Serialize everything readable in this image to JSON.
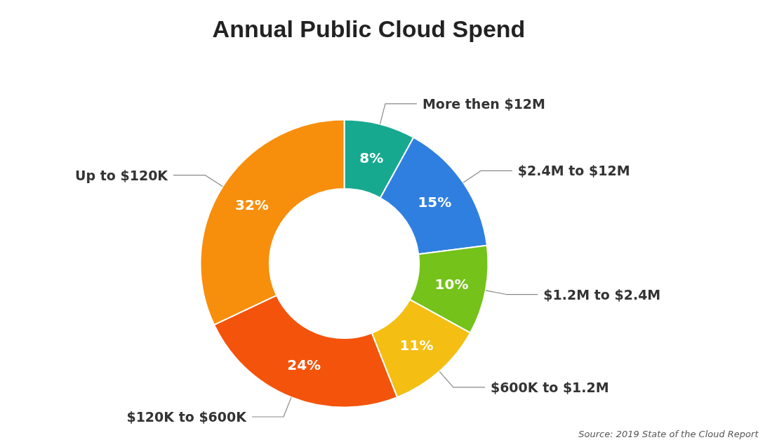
{
  "chart_data": {
    "type": "donut",
    "title": "Annual Public Cloud Spend",
    "categories": [
      "More then $12M",
      "$2.4M to $12M",
      "$1.2M to $2.4M",
      "$600K to $1.2M",
      "$120K to $600K",
      "Up to $120K"
    ],
    "values": [
      8,
      15,
      10,
      11,
      24,
      32
    ],
    "value_labels": [
      "8%",
      "15%",
      "10%",
      "11%",
      "24%",
      "32%"
    ],
    "colors": [
      "#17a98f",
      "#2f7fe0",
      "#74c21a",
      "#f4be12",
      "#f4530b",
      "#f78e0c"
    ],
    "annotations": [
      "Source: 2019 State of the Cloud Report"
    ]
  }
}
